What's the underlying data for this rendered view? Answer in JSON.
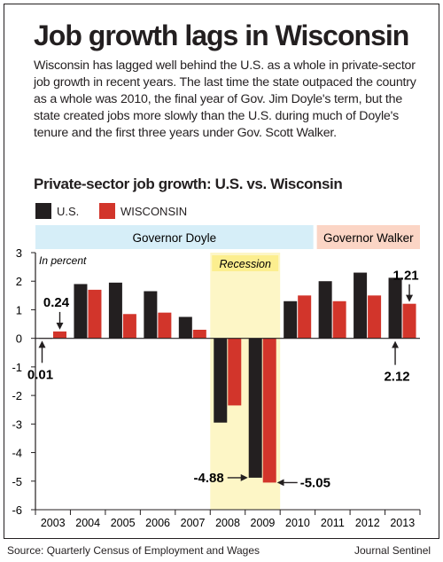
{
  "title": "Job growth lags in Wisconsin",
  "intro": "Wisconsin has lagged well behind the U.S. as a whole in private-sector job growth in recent years. The last time the state outpaced the country as a whole was 2010, the final year of Gov. Jim Doyle's term, but the state created jobs more slowly than the U.S. during much of Doyle's tenure and the first three years under Gov. Scott Walker.",
  "source": "Source: Quarterly Census of Employment and Wages",
  "credit": "Journal Sentinel",
  "colors": {
    "us": "#231f20",
    "wisconsin": "#d2352b",
    "doyle_band": "#d6eef8",
    "walker_band": "#fbd5c5",
    "recession": "#fdf6c6",
    "recession_label_bg": "#fcee8f"
  },
  "chart_data": {
    "type": "bar",
    "title": "Private-sector job growth: U.S. vs. Wisconsin",
    "unit_note": "In percent",
    "categories": [
      "2003",
      "2004",
      "2005",
      "2006",
      "2007",
      "2008",
      "2009",
      "2010",
      "2011",
      "2012",
      "2013"
    ],
    "series": [
      {
        "name": "U.S.",
        "color": "#231f20",
        "values": [
          0.01,
          1.9,
          1.95,
          1.65,
          0.75,
          -2.95,
          -4.88,
          1.3,
          2.0,
          2.3,
          2.12
        ]
      },
      {
        "name": "WISCONSIN",
        "color": "#d2352b",
        "values": [
          0.24,
          1.7,
          0.85,
          0.9,
          0.3,
          -2.35,
          -5.05,
          1.5,
          1.3,
          1.5,
          1.21
        ]
      }
    ],
    "ylim": [
      -6,
      3
    ],
    "yticks": [
      3,
      2,
      1,
      0,
      -1,
      -2,
      -3,
      -4,
      -5,
      -6
    ],
    "grid": false,
    "periods": [
      {
        "label": "Governor Doyle",
        "from": "2003",
        "to": "2010"
      },
      {
        "label": "Governor Walker",
        "from": "2011",
        "to": "2013"
      }
    ],
    "recession": {
      "label": "Recession",
      "from": "2008",
      "to": "2009"
    },
    "annotations": [
      {
        "text": "0.01",
        "category": "2003",
        "series": "U.S."
      },
      {
        "text": "0.24",
        "category": "2003",
        "series": "WISCONSIN"
      },
      {
        "text": "-4.88",
        "category": "2009",
        "series": "U.S."
      },
      {
        "text": "-5.05",
        "category": "2009",
        "series": "WISCONSIN"
      },
      {
        "text": "2.12",
        "category": "2013",
        "series": "U.S."
      },
      {
        "text": "1.21",
        "category": "2013",
        "series": "WISCONSIN"
      }
    ]
  }
}
